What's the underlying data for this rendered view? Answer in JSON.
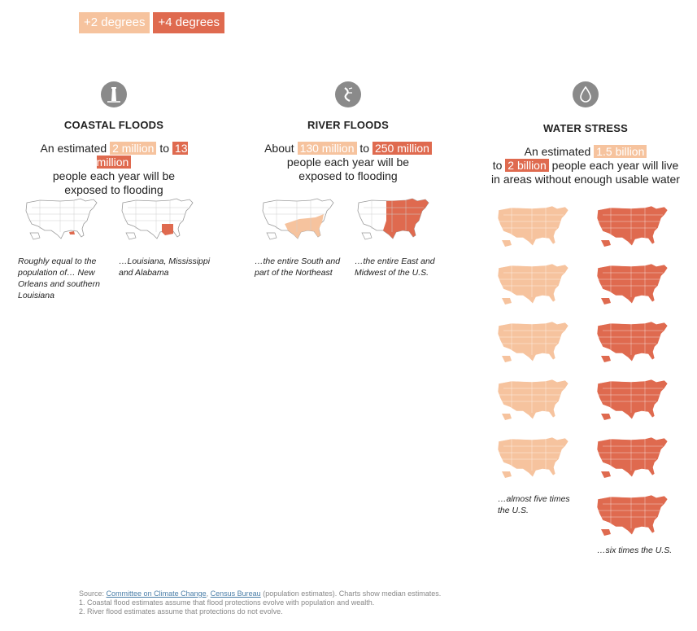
{
  "legend": {
    "two": "+2 degrees",
    "four": "+4 degrees"
  },
  "colors": {
    "two_degrees": "#f6c39e",
    "four_degrees": "#df6a4f",
    "map_outline": "#9a9a9a",
    "map_blank": "#ffffff"
  },
  "coastal": {
    "icon": "lighthouse-icon",
    "title": "COASTAL FLOODS",
    "pre": "An estimated",
    "low": "2 million",
    "mid": "to",
    "high": "13 million",
    "line2": "people each year will be",
    "line3": "exposed to flooding",
    "caption_low": "Roughly equal to the population of… New Orleans and southern Louisiana",
    "caption_high": "…Louisiana, Mississippi and Alabama"
  },
  "river": {
    "icon": "river-icon",
    "title": "RIVER FLOODS",
    "pre": "About",
    "low": "130 million",
    "mid": "to",
    "high": "250 million",
    "line2": "people each year will be",
    "line3": "exposed to flooding",
    "caption_low": "…the entire South and part of the Northeast",
    "caption_high": "…the entire East and Midwest of the U.S."
  },
  "water": {
    "icon": "water-drop-icon",
    "title": "WATER STRESS",
    "pre": "An estimated",
    "low": "1.5 billion",
    "to": "to",
    "high": "2 billion",
    "line2_rest": "people each year will live",
    "line3": "in areas without enough usable water",
    "maps_low": 5,
    "maps_high": 6,
    "caption_low": "…almost five times the U.S.",
    "caption_high": "…six times the U.S."
  },
  "source": {
    "prefix": "Source:",
    "link1": "Committee on Climate Change",
    "comma": ",",
    "link2": "Census Bureau",
    "rest": "(population estimates). Charts show median estimates.",
    "note1": "1. Coastal flood estimates assume that flood protections evolve with population and wealth.",
    "note2": "2. River flood estimates assume that protections do not evolve."
  }
}
